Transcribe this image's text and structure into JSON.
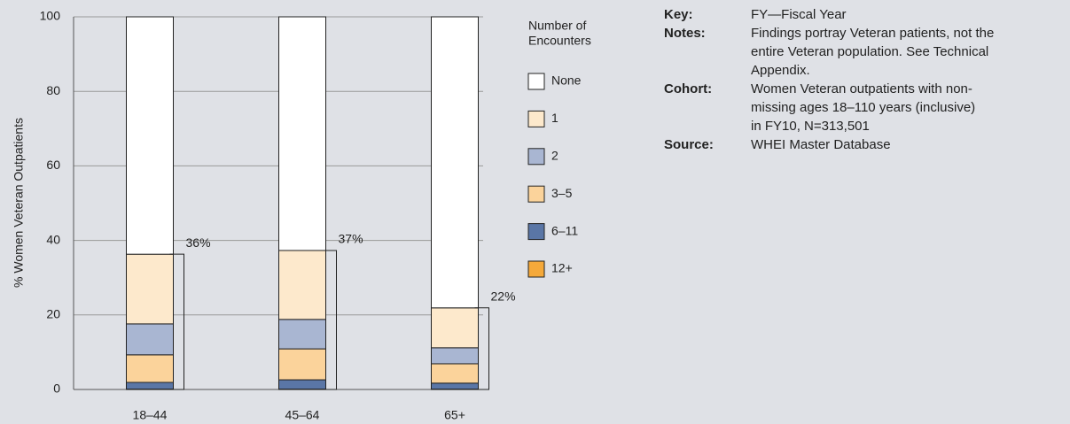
{
  "chart_data": {
    "type": "stacked_bar",
    "ylabel": "% Women Veteran Outpatients",
    "categories": [
      "18–44",
      "45–64",
      "65+"
    ],
    "series": [
      {
        "name": "None",
        "color": "#ffffff",
        "values": [
          63.7,
          62.7,
          78.1
        ]
      },
      {
        "name": "1",
        "color": "#fde9cc",
        "values": [
          18.7,
          18.5,
          10.7
        ]
      },
      {
        "name": "2",
        "color": "#a9b6d2",
        "values": [
          8.3,
          7.9,
          4.3
        ]
      },
      {
        "name": "3–5",
        "color": "#fbd39b",
        "values": [
          7.4,
          8.3,
          5.2
        ]
      },
      {
        "name": "6–11",
        "color": "#5a76a6",
        "values": [
          1.8,
          2.5,
          1.6
        ]
      },
      {
        "name": "12+",
        "color": "#f5a93a",
        "values": [
          0.1,
          0.1,
          0.1
        ]
      }
    ],
    "annotations": [
      "36%",
      "37%",
      "22%"
    ],
    "legend_title": [
      "Number of",
      "Encounters"
    ],
    "ylim": [
      0,
      100
    ],
    "yticks": [
      0,
      20,
      40,
      60,
      80,
      100
    ],
    "grid": true
  },
  "notes": [
    {
      "label": "Key:",
      "lines": [
        "FY—Fiscal Year"
      ]
    },
    {
      "label": "Notes:",
      "lines": [
        "Findings portray Veteran patients, not the",
        "entire Veteran population. See Technical",
        "Appendix."
      ]
    },
    {
      "label": "Cohort:",
      "lines": [
        "Women Veteran outpatients with non-",
        "missing ages 18–110 years (inclusive)",
        "in FY10, N=313,501"
      ]
    },
    {
      "label": "Source:",
      "lines": [
        "WHEI Master Database"
      ]
    }
  ]
}
